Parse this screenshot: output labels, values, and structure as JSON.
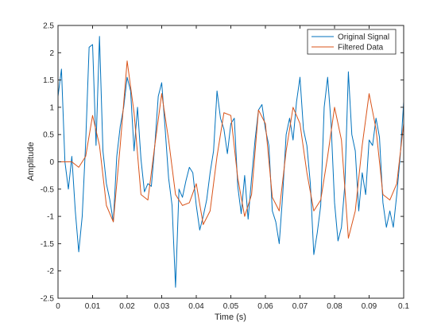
{
  "chart_data": {
    "type": "line",
    "title": "",
    "xlabel": "Time (s)",
    "ylabel": "Amplitude",
    "xlim": [
      0,
      0.1
    ],
    "ylim": [
      -2.5,
      2.5
    ],
    "xticks": [
      "0",
      "0.01",
      "0.02",
      "0.03",
      "0.04",
      "0.05",
      "0.06",
      "0.07",
      "0.08",
      "0.09",
      "0.1"
    ],
    "yticks": [
      "2.5",
      "2",
      "1.5",
      "1",
      "0.5",
      "0",
      "-0.5",
      "-1",
      "-1.5",
      "-2",
      "-2.5"
    ],
    "xtick_values": [
      0,
      0.01,
      0.02,
      0.03,
      0.04,
      0.05,
      0.06,
      0.07,
      0.08,
      0.09,
      0.1
    ],
    "ytick_values": [
      2.5,
      2,
      1.5,
      1,
      0.5,
      0,
      -0.5,
      -1,
      -1.5,
      -2,
      -2.5
    ],
    "grid": false,
    "legend_position": "top-right",
    "series": [
      {
        "name": "Original Signal",
        "color": "#0072bd",
        "x": [
          0,
          0.001,
          0.002,
          0.003,
          0.004,
          0.005,
          0.006,
          0.007,
          0.008,
          0.009,
          0.01,
          0.011,
          0.012,
          0.013,
          0.014,
          0.015,
          0.016,
          0.017,
          0.018,
          0.019,
          0.02,
          0.021,
          0.022,
          0.023,
          0.024,
          0.025,
          0.026,
          0.027,
          0.028,
          0.029,
          0.03,
          0.031,
          0.032,
          0.033,
          0.034,
          0.035,
          0.036,
          0.037,
          0.038,
          0.039,
          0.04,
          0.041,
          0.042,
          0.043,
          0.044,
          0.045,
          0.046,
          0.047,
          0.048,
          0.049,
          0.05,
          0.051,
          0.052,
          0.053,
          0.054,
          0.055,
          0.056,
          0.057,
          0.058,
          0.059,
          0.06,
          0.061,
          0.062,
          0.063,
          0.064,
          0.065,
          0.066,
          0.067,
          0.068,
          0.069,
          0.07,
          0.071,
          0.072,
          0.073,
          0.074,
          0.075,
          0.076,
          0.077,
          0.078,
          0.079,
          0.08,
          0.081,
          0.082,
          0.083,
          0.084,
          0.085,
          0.086,
          0.087,
          0.088,
          0.089,
          0.09,
          0.091,
          0.092,
          0.093,
          0.094,
          0.095,
          0.096,
          0.097,
          0.098,
          0.099,
          0.1
        ],
        "y": [
          1.2,
          1.7,
          0.0,
          -0.5,
          0.1,
          -0.9,
          -1.65,
          -1.0,
          0.35,
          2.1,
          2.15,
          0.3,
          2.3,
          0.2,
          -0.4,
          -0.7,
          -1.1,
          0.1,
          0.65,
          1.0,
          1.55,
          1.3,
          0.2,
          1.0,
          0.05,
          -0.55,
          -0.4,
          -0.45,
          0.3,
          1.2,
          1.45,
          0.6,
          -0.3,
          -0.8,
          -2.3,
          -0.5,
          -0.65,
          -0.35,
          -0.1,
          -0.2,
          -0.8,
          -1.25,
          -1.0,
          -0.7,
          -0.2,
          0.2,
          1.3,
          0.8,
          0.6,
          0.15,
          0.7,
          0.8,
          -0.45,
          -0.95,
          -0.25,
          -1.05,
          -0.3,
          0.4,
          0.95,
          1.05,
          0.6,
          0.3,
          -0.9,
          -1.1,
          -1.5,
          -0.6,
          0.5,
          0.8,
          0.4,
          1.1,
          1.55,
          0.6,
          0.3,
          -0.4,
          -1.7,
          -1.3,
          -0.8,
          1.0,
          1.55,
          0.7,
          -0.75,
          -1.45,
          -1.2,
          -0.4,
          1.65,
          0.5,
          0.2,
          -0.9,
          -0.2,
          -0.6,
          0.4,
          0.3,
          0.8,
          0.45,
          -0.75,
          -1.2,
          -0.9,
          -1.2,
          -0.6,
          0.1,
          1.1
        ]
      },
      {
        "name": "Filtered Data",
        "color": "#d95319",
        "x": [
          0,
          0.002,
          0.004,
          0.006,
          0.008,
          0.01,
          0.012,
          0.014,
          0.016,
          0.018,
          0.02,
          0.022,
          0.024,
          0.026,
          0.028,
          0.03,
          0.032,
          0.034,
          0.036,
          0.038,
          0.04,
          0.042,
          0.044,
          0.046,
          0.048,
          0.05,
          0.052,
          0.054,
          0.056,
          0.058,
          0.06,
          0.062,
          0.064,
          0.066,
          0.068,
          0.07,
          0.072,
          0.074,
          0.076,
          0.078,
          0.08,
          0.082,
          0.084,
          0.086,
          0.088,
          0.09,
          0.092,
          0.094,
          0.096,
          0.098,
          0.1
        ],
        "y": [
          0.0,
          0.0,
          0.0,
          -0.1,
          0.1,
          0.85,
          0.3,
          -0.8,
          -1.1,
          0.3,
          1.85,
          0.9,
          -0.6,
          -0.7,
          0.3,
          1.25,
          0.4,
          -0.6,
          -0.8,
          -0.75,
          -0.4,
          -1.15,
          -0.9,
          0.1,
          0.9,
          0.85,
          -0.3,
          -1.0,
          -0.6,
          0.95,
          0.7,
          -0.65,
          -0.9,
          0.2,
          1.0,
          0.7,
          -0.2,
          -0.9,
          -0.7,
          0.1,
          1.0,
          0.4,
          -1.4,
          -0.9,
          0.3,
          1.25,
          0.6,
          -0.6,
          -0.7,
          -0.4,
          0.7
        ]
      }
    ]
  }
}
